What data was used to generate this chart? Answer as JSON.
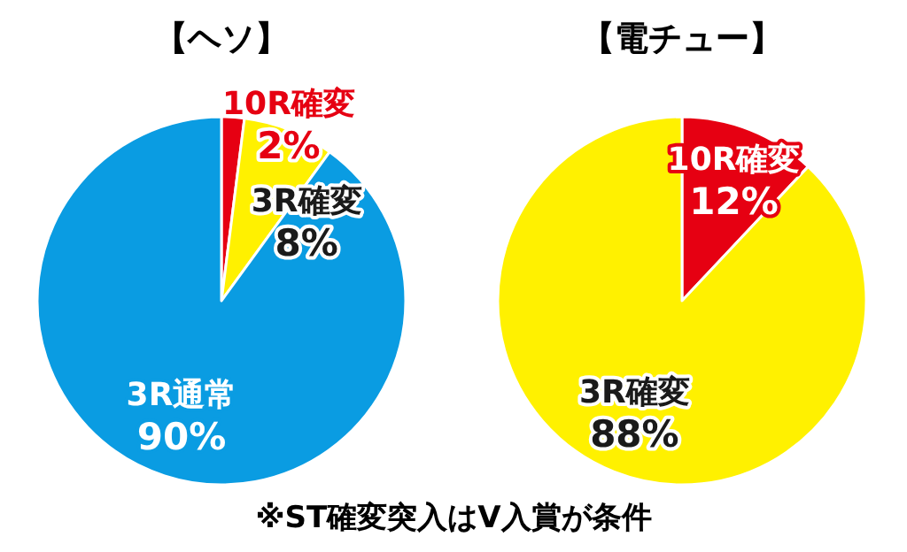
{
  "chart_data": [
    {
      "type": "pie",
      "title": "【ヘソ】",
      "categories": [
        "10R確変",
        "3R確変",
        "3R通常"
      ],
      "values": [
        2,
        8,
        90
      ],
      "value_labels": [
        "2%",
        "8%",
        "90%"
      ],
      "colors": [
        "#e60012",
        "#fff100",
        "#0a9ce2"
      ]
    },
    {
      "type": "pie",
      "title": "【電チュー】",
      "categories": [
        "10R確変",
        "3R確変"
      ],
      "values": [
        12,
        88
      ],
      "value_labels": [
        "12%",
        "88%"
      ],
      "colors": [
        "#e60012",
        "#fff100"
      ],
      "annotations": [
        "※ST確変突入はV入賞が条件"
      ]
    }
  ]
}
